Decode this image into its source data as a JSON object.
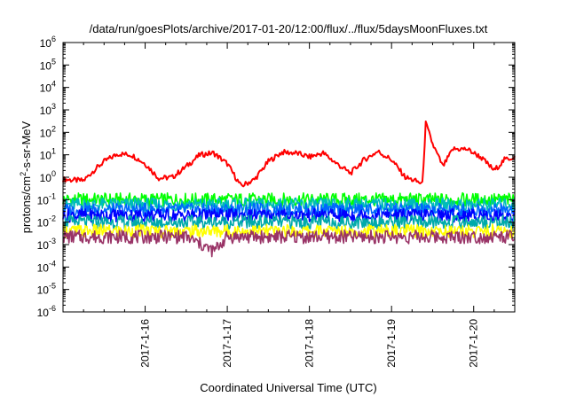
{
  "chart_data": {
    "type": "line",
    "title": "/data/run/goesPlots/archive/2017-01-20/12:00/flux/../flux/5daysMoonFluxes.txt",
    "xlabel": "Coordinated Universal Time (UTC)",
    "ylabel_parts": {
      "pre": "protons/cm",
      "sup": "2",
      "post": "-s-sr-MeV"
    },
    "x_range": [
      "2017-01-15T00:00",
      "2017-01-20T12:00"
    ],
    "x_ticks": [
      "2017-1-16",
      "2017-1-17",
      "2017-1-18",
      "2017-1-19",
      "2017-1-20"
    ],
    "y_scale": "log",
    "y_range": [
      1e-06,
      1000000.0
    ],
    "y_ticks": [
      {
        "base": "10",
        "exp": "-6"
      },
      {
        "base": "10",
        "exp": "-5"
      },
      {
        "base": "10",
        "exp": "-4"
      },
      {
        "base": "10",
        "exp": "-3"
      },
      {
        "base": "10",
        "exp": "-2"
      },
      {
        "base": "10",
        "exp": "-1"
      },
      {
        "base": "10",
        "exp": "0"
      },
      {
        "base": "10",
        "exp": "1"
      },
      {
        "base": "10",
        "exp": "2"
      },
      {
        "base": "10",
        "exp": "3"
      },
      {
        "base": "10",
        "exp": "4"
      },
      {
        "base": "10",
        "exp": "5"
      },
      {
        "base": "10",
        "exp": "6"
      }
    ],
    "grid": false,
    "legend": "none",
    "series": [
      {
        "color": "#ff0000",
        "x": [
          "2017-01-15T00:00",
          "2017-01-15T06:00",
          "2017-01-15T09:00",
          "2017-01-15T12:00",
          "2017-01-15T16:00",
          "2017-01-15T20:00",
          "2017-01-16T00:00",
          "2017-01-16T04:00",
          "2017-01-16T08:00",
          "2017-01-16T12:00",
          "2017-01-16T16:00",
          "2017-01-16T20:00",
          "2017-01-17T00:00",
          "2017-01-17T04:00",
          "2017-01-17T08:00",
          "2017-01-17T12:00",
          "2017-01-17T16:00",
          "2017-01-17T20:00",
          "2017-01-18T00:00",
          "2017-01-18T04:00",
          "2017-01-18T08:00",
          "2017-01-18T12:00",
          "2017-01-18T16:00",
          "2017-01-18T20:00",
          "2017-01-19T00:00",
          "2017-01-19T04:00",
          "2017-01-19T08:00",
          "2017-01-19T09:00",
          "2017-01-19T10:00",
          "2017-01-19T12:00",
          "2017-01-19T15:00",
          "2017-01-19T18:00",
          "2017-01-19T22:00",
          "2017-01-20T02:00",
          "2017-01-20T06:00",
          "2017-01-20T09:00",
          "2017-01-20T12:00"
        ],
        "y": [
          0.8,
          0.7,
          2,
          5,
          11,
          10,
          4,
          0.9,
          1,
          3,
          10,
          12,
          4,
          0.4,
          0.8,
          5,
          13,
          12,
          8,
          12,
          4,
          1.5,
          6,
          14,
          6,
          1,
          0.6,
          0.5,
          250,
          30,
          3,
          18,
          18,
          8,
          2,
          6,
          8
        ]
      },
      {
        "color": "#00ff00",
        "x": [
          "2017-01-15T00:00",
          "2017-01-15T12:00",
          "2017-01-16T00:00",
          "2017-01-16T12:00",
          "2017-01-17T00:00",
          "2017-01-17T12:00",
          "2017-01-18T00:00",
          "2017-01-18T12:00",
          "2017-01-19T00:00",
          "2017-01-19T12:00",
          "2017-01-20T00:00",
          "2017-01-20T12:00"
        ],
        "y": [
          0.1,
          0.1,
          0.1,
          0.1,
          0.1,
          0.1,
          0.1,
          0.1,
          0.1,
          0.1,
          0.1,
          0.1
        ]
      },
      {
        "color": "#00bbbb",
        "x": [
          "2017-01-15T00:00",
          "2017-01-15T12:00",
          "2017-01-16T00:00",
          "2017-01-16T12:00",
          "2017-01-17T00:00",
          "2017-01-17T12:00",
          "2017-01-18T00:00",
          "2017-01-18T12:00",
          "2017-01-19T00:00",
          "2017-01-19T12:00",
          "2017-01-20T00:00",
          "2017-01-20T12:00"
        ],
        "y": [
          0.06,
          0.06,
          0.06,
          0.06,
          0.06,
          0.06,
          0.06,
          0.06,
          0.06,
          0.06,
          0.06,
          0.06
        ]
      },
      {
        "color": "#0066ff",
        "x": [
          "2017-01-15T00:00",
          "2017-01-15T12:00",
          "2017-01-16T00:00",
          "2017-01-16T12:00",
          "2017-01-17T00:00",
          "2017-01-17T12:00",
          "2017-01-18T00:00",
          "2017-01-18T12:00",
          "2017-01-19T00:00",
          "2017-01-19T12:00",
          "2017-01-20T00:00",
          "2017-01-20T12:00"
        ],
        "y": [
          0.035,
          0.035,
          0.035,
          0.035,
          0.035,
          0.035,
          0.035,
          0.035,
          0.035,
          0.035,
          0.035,
          0.035
        ]
      },
      {
        "color": "#0000ff",
        "x": [
          "2017-01-15T00:00",
          "2017-01-15T12:00",
          "2017-01-16T00:00",
          "2017-01-16T12:00",
          "2017-01-17T00:00",
          "2017-01-17T12:00",
          "2017-01-18T00:00",
          "2017-01-18T12:00",
          "2017-01-19T00:00",
          "2017-01-19T12:00",
          "2017-01-20T00:00",
          "2017-01-20T12:00"
        ],
        "y": [
          0.02,
          0.02,
          0.02,
          0.02,
          0.02,
          0.02,
          0.02,
          0.02,
          0.02,
          0.02,
          0.02,
          0.02
        ]
      },
      {
        "color": "#00aaaa",
        "x": [
          "2017-01-15T00:00",
          "2017-01-15T12:00",
          "2017-01-16T00:00",
          "2017-01-16T12:00",
          "2017-01-17T00:00",
          "2017-01-17T12:00",
          "2017-01-18T00:00",
          "2017-01-18T12:00",
          "2017-01-19T00:00",
          "2017-01-19T12:00",
          "2017-01-20T00:00",
          "2017-01-20T12:00"
        ],
        "y": [
          0.01,
          0.01,
          0.01,
          0.01,
          0.01,
          0.01,
          0.01,
          0.01,
          0.01,
          0.01,
          0.01,
          0.01
        ]
      },
      {
        "color": "#ffff00",
        "x": [
          "2017-01-15T00:00",
          "2017-01-15T12:00",
          "2017-01-16T00:00",
          "2017-01-16T12:00",
          "2017-01-17T00:00",
          "2017-01-17T12:00",
          "2017-01-18T00:00",
          "2017-01-18T12:00",
          "2017-01-19T00:00",
          "2017-01-19T12:00",
          "2017-01-20T00:00",
          "2017-01-20T12:00"
        ],
        "y": [
          0.004,
          0.004,
          0.004,
          0.004,
          0.004,
          0.004,
          0.004,
          0.004,
          0.004,
          0.004,
          0.004,
          0.004
        ]
      },
      {
        "color": "#993366",
        "x": [
          "2017-01-15T00:00",
          "2017-01-15T12:00",
          "2017-01-16T00:00",
          "2017-01-16T12:00",
          "2017-01-16T20:00",
          "2017-01-17T00:00",
          "2017-01-17T12:00",
          "2017-01-18T00:00",
          "2017-01-18T12:00",
          "2017-01-19T00:00",
          "2017-01-19T12:00",
          "2017-01-20T00:00",
          "2017-01-20T12:00"
        ],
        "y": [
          0.0022,
          0.0022,
          0.0022,
          0.0022,
          0.0005,
          0.0022,
          0.0022,
          0.0022,
          0.0022,
          0.0022,
          0.0022,
          0.0022,
          0.0022
        ]
      }
    ]
  }
}
